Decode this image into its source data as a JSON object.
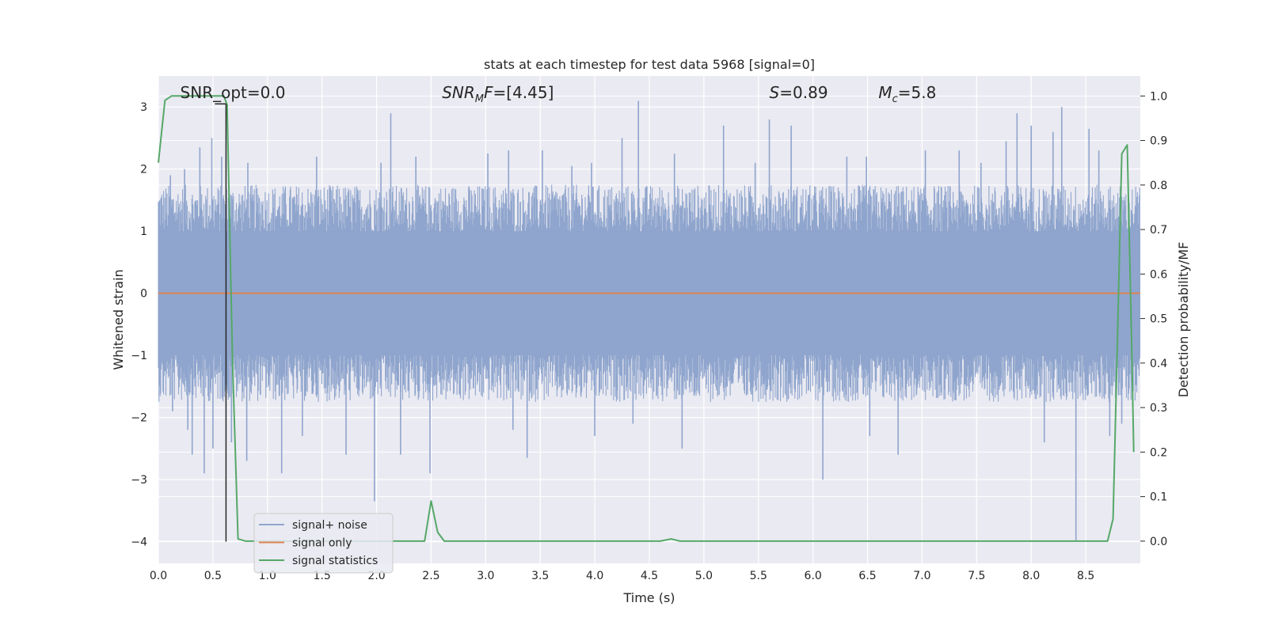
{
  "chart_data": {
    "type": "line",
    "title": "stats at each timestep for test data 5968 [signal=0]",
    "xlabel": "Time (s)",
    "ylabel_left": "Whitened strain",
    "ylabel_right": "Detection probability/MF",
    "xlim": [
      0.0,
      9.0
    ],
    "ylim_left": [
      -4.35,
      3.5
    ],
    "ylim_right": [
      -0.05,
      1.045
    ],
    "x_ticks": [
      0.0,
      0.5,
      1.0,
      1.5,
      2.0,
      2.5,
      3.0,
      3.5,
      4.0,
      4.5,
      5.0,
      5.5,
      6.0,
      6.5,
      7.0,
      7.5,
      8.0,
      8.5
    ],
    "x_tick_labels": [
      "0.0",
      "0.5",
      "1.0",
      "1.5",
      "2.0",
      "2.5",
      "3.0",
      "3.5",
      "4.0",
      "4.5",
      "5.0",
      "5.5",
      "6.0",
      "6.5",
      "7.0",
      "7.5",
      "8.0",
      "8.5"
    ],
    "y_left_ticks": [
      3,
      2,
      1,
      0,
      -1,
      -2,
      -3,
      -4
    ],
    "y_left_tick_labels": [
      "3",
      "2",
      "1",
      "0",
      "−1",
      "−2",
      "−3",
      "−4"
    ],
    "y_right_ticks": [
      1.0,
      0.9,
      0.8,
      0.7,
      0.6,
      0.5,
      0.4,
      0.3,
      0.2,
      0.1,
      0.0
    ],
    "y_right_tick_labels": [
      "1.0",
      "0.9",
      "0.8",
      "0.7",
      "0.6",
      "0.5",
      "0.4",
      "0.3",
      "0.2",
      "0.1",
      "0.0"
    ],
    "grid": true,
    "annotations": [
      {
        "html": "SNR_opt=0.0",
        "x": 0.2
      },
      {
        "html": "<tspan font-style='italic'>SNR</tspan><tspan font-style='italic' font-size='13' dy='5'>M</tspan><tspan font-style='italic' dy='-5'>F</tspan>=[4.45]",
        "x": 2.6
      },
      {
        "html": "<tspan font-style='italic'>S</tspan>=0.89",
        "x": 5.6
      },
      {
        "html": "<tspan font-style='italic'>M</tspan><tspan font-style='italic' font-size='13' dy='5'>c</tspan><tspan dy='-5'>=5.8</tspan>",
        "x": 6.6
      }
    ],
    "vertical_marker": {
      "x": 0.62,
      "y_from": 3.05,
      "y_to": -4.0,
      "color": "#262626"
    },
    "noise_spikes": [
      {
        "x": 0.11,
        "y": 1.9
      },
      {
        "x": 0.13,
        "y": -1.9
      },
      {
        "x": 0.24,
        "y": 2.0
      },
      {
        "x": 0.27,
        "y": -2.2
      },
      {
        "x": 0.38,
        "y": 2.35
      },
      {
        "x": 0.31,
        "y": -2.6
      },
      {
        "x": 0.42,
        "y": -2.9
      },
      {
        "x": 0.49,
        "y": 2.5
      },
      {
        "x": 0.5,
        "y": -2.5
      },
      {
        "x": 0.58,
        "y": 2.2
      },
      {
        "x": 0.67,
        "y": -2.4
      },
      {
        "x": 0.82,
        "y": 2.1
      },
      {
        "x": 0.81,
        "y": -2.7
      },
      {
        "x": 1.13,
        "y": -2.9
      },
      {
        "x": 1.32,
        "y": -2.3
      },
      {
        "x": 1.45,
        "y": 2.2
      },
      {
        "x": 1.72,
        "y": -2.6
      },
      {
        "x": 1.98,
        "y": -3.35
      },
      {
        "x": 2.04,
        "y": 2.1
      },
      {
        "x": 2.13,
        "y": 2.9
      },
      {
        "x": 2.22,
        "y": -2.6
      },
      {
        "x": 2.36,
        "y": 2.2
      },
      {
        "x": 2.49,
        "y": -2.9
      },
      {
        "x": 3.02,
        "y": 2.25
      },
      {
        "x": 3.21,
        "y": 2.3
      },
      {
        "x": 3.25,
        "y": -2.2
      },
      {
        "x": 3.38,
        "y": -2.65
      },
      {
        "x": 3.52,
        "y": 2.3
      },
      {
        "x": 3.79,
        "y": 2.05
      },
      {
        "x": 3.97,
        "y": 2.1
      },
      {
        "x": 4.0,
        "y": -2.3
      },
      {
        "x": 4.25,
        "y": 2.5
      },
      {
        "x": 4.35,
        "y": -2.1
      },
      {
        "x": 4.4,
        "y": 3.1
      },
      {
        "x": 4.73,
        "y": 2.25
      },
      {
        "x": 4.8,
        "y": -2.5
      },
      {
        "x": 5.18,
        "y": 2.7
      },
      {
        "x": 5.47,
        "y": 2.1
      },
      {
        "x": 5.6,
        "y": 2.8
      },
      {
        "x": 5.8,
        "y": 2.7
      },
      {
        "x": 6.09,
        "y": -3.0
      },
      {
        "x": 6.31,
        "y": 2.2
      },
      {
        "x": 6.49,
        "y": 2.2
      },
      {
        "x": 6.52,
        "y": -2.3
      },
      {
        "x": 6.78,
        "y": -2.6
      },
      {
        "x": 7.03,
        "y": 2.3
      },
      {
        "x": 7.34,
        "y": 2.3
      },
      {
        "x": 7.54,
        "y": 2.1
      },
      {
        "x": 7.77,
        "y": 2.45
      },
      {
        "x": 7.87,
        "y": 2.9
      },
      {
        "x": 8.0,
        "y": 2.7
      },
      {
        "x": 8.12,
        "y": -2.4
      },
      {
        "x": 8.2,
        "y": 2.6
      },
      {
        "x": 8.28,
        "y": 3.0
      },
      {
        "x": 8.41,
        "y": -4.0
      },
      {
        "x": 8.53,
        "y": 2.65
      },
      {
        "x": 8.62,
        "y": 2.3
      },
      {
        "x": 8.72,
        "y": -2.3
      },
      {
        "x": 8.83,
        "y": -2.1
      }
    ],
    "series": [
      {
        "name": "signal+ noise",
        "color": "#8fa5cd",
        "axis": "left",
        "band_upper": 1.75,
        "band_lower": -1.75
      },
      {
        "name": "signal only",
        "color": "#dd8452",
        "axis": "left",
        "x": [
          0.0,
          9.0
        ],
        "y": [
          0.0,
          0.0
        ]
      },
      {
        "name": "signal statistics",
        "color": "#55a868",
        "axis": "right",
        "x": [
          0.0,
          0.06,
          0.12,
          0.3,
          0.45,
          0.55,
          0.6,
          0.63,
          0.68,
          0.73,
          0.8,
          2.4,
          2.44,
          2.5,
          2.56,
          2.62,
          3.5,
          4.6,
          4.7,
          4.78,
          8.3,
          8.7,
          8.75,
          8.79,
          8.83,
          8.88,
          8.92,
          8.94
        ],
        "y": [
          0.85,
          0.99,
          1.0,
          1.0,
          1.0,
          1.0,
          1.0,
          0.98,
          0.4,
          0.005,
          0.0,
          0.0,
          0.0,
          0.09,
          0.02,
          0.0,
          0.0,
          0.0,
          0.005,
          0.0,
          0.0,
          0.0,
          0.05,
          0.45,
          0.87,
          0.89,
          0.45,
          0.2
        ]
      }
    ],
    "legend": {
      "placement": "lower-left",
      "entries": [
        "signal+ noise",
        "signal only",
        "signal statistics"
      ]
    }
  }
}
